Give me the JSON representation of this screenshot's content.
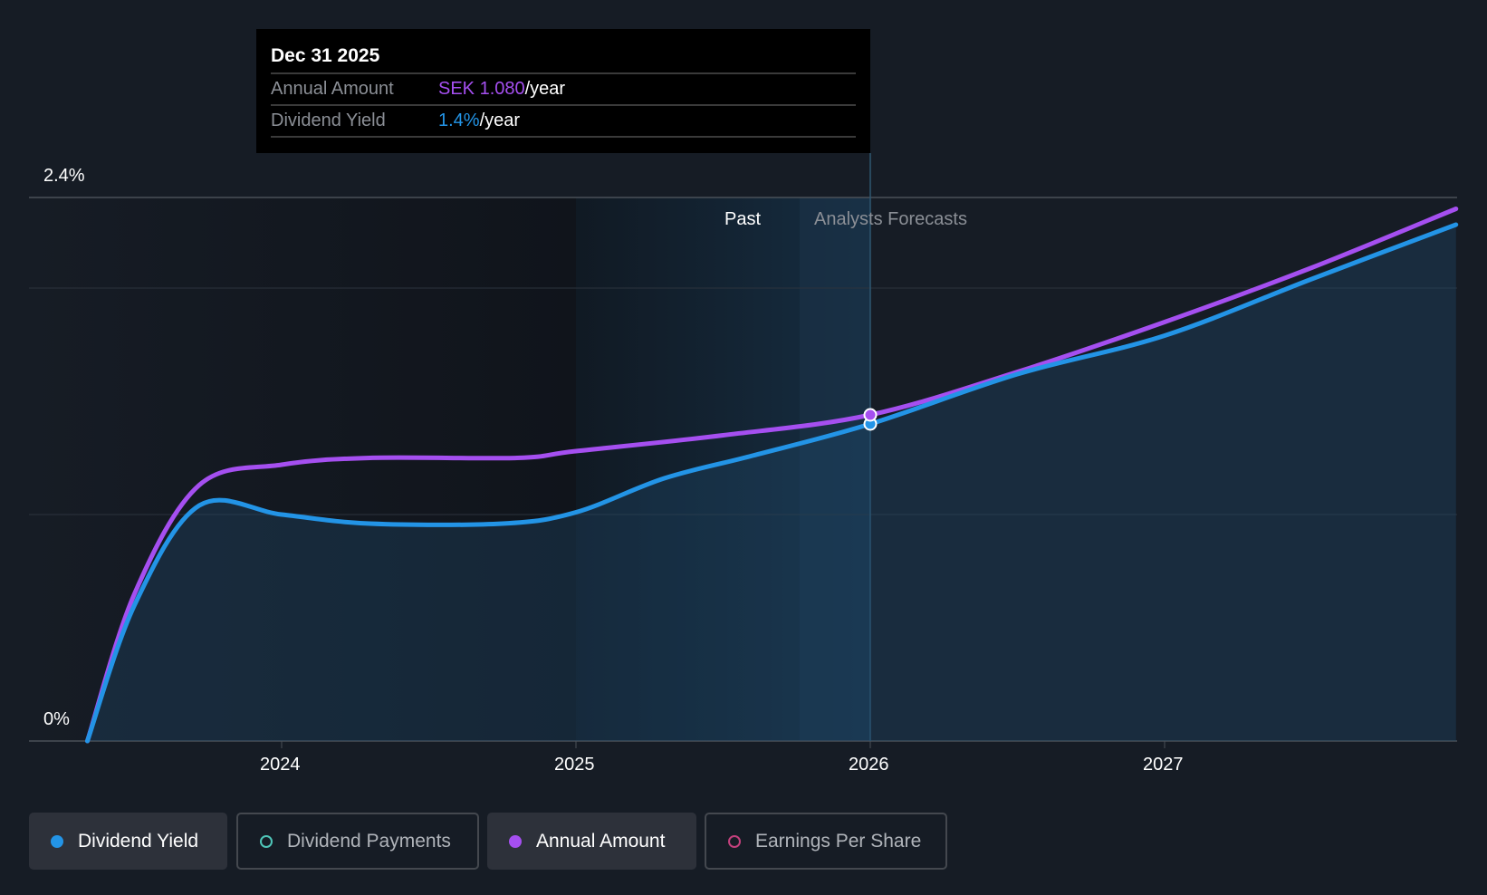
{
  "tooltip": {
    "date": "Dec 31 2025",
    "rows": [
      {
        "label": "Annual Amount",
        "value": "SEK 1.080",
        "suffix": "/year",
        "color": "#a54ff0"
      },
      {
        "label": "Dividend Yield",
        "value": "1.4%",
        "suffix": "/year",
        "color": "#2394e6"
      }
    ]
  },
  "chart_data": {
    "type": "line",
    "y_tick_labels": [
      "2.4%",
      "0%"
    ],
    "ylim": [
      0,
      2.4
    ],
    "xlim": [
      2023.34,
      2027.99
    ],
    "x_ticks": [
      2024,
      2025,
      2026,
      2027
    ],
    "x_tick_labels": [
      "2024",
      "2025",
      "2026",
      "2027"
    ],
    "region_labels": {
      "past": "Past",
      "forecast": "Analysts Forecasts"
    },
    "past_start": 2025.0,
    "forecast_start": 2026.0,
    "series": [
      {
        "name": "Dividend Yield",
        "unit": "%",
        "color": "#2394e6",
        "x": [
          2023.34,
          2023.5,
          2023.72,
          2024.0,
          2024.3,
          2024.75,
          2025.0,
          2025.3,
          2025.6,
          2026.0,
          2026.5,
          2027.0,
          2027.5,
          2027.99
        ],
        "y": [
          0,
          0.6,
          1.04,
          1.0,
          0.96,
          0.96,
          1.01,
          1.16,
          1.26,
          1.4,
          1.62,
          1.79,
          2.04,
          2.28
        ]
      },
      {
        "name": "Annual Amount",
        "unit": "% scale",
        "color": "#a54ff0",
        "x": [
          2023.34,
          2023.5,
          2023.72,
          2024.0,
          2024.3,
          2024.8,
          2025.0,
          2025.5,
          2026.0,
          2026.5,
          2027.0,
          2027.5,
          2027.99
        ],
        "y": [
          0,
          0.65,
          1.13,
          1.22,
          1.25,
          1.25,
          1.28,
          1.35,
          1.44,
          1.63,
          1.85,
          2.09,
          2.35
        ]
      }
    ],
    "highlight_x": 2026.0
  },
  "legend": [
    {
      "label": "Dividend Yield",
      "color": "#2394e6",
      "active": true
    },
    {
      "label": "Dividend Payments",
      "color": "#4fc5b8",
      "active": false
    },
    {
      "label": "Annual Amount",
      "color": "#a54ff0",
      "active": true
    },
    {
      "label": "Earnings Per Share",
      "color": "#c2407c",
      "active": false
    }
  ]
}
